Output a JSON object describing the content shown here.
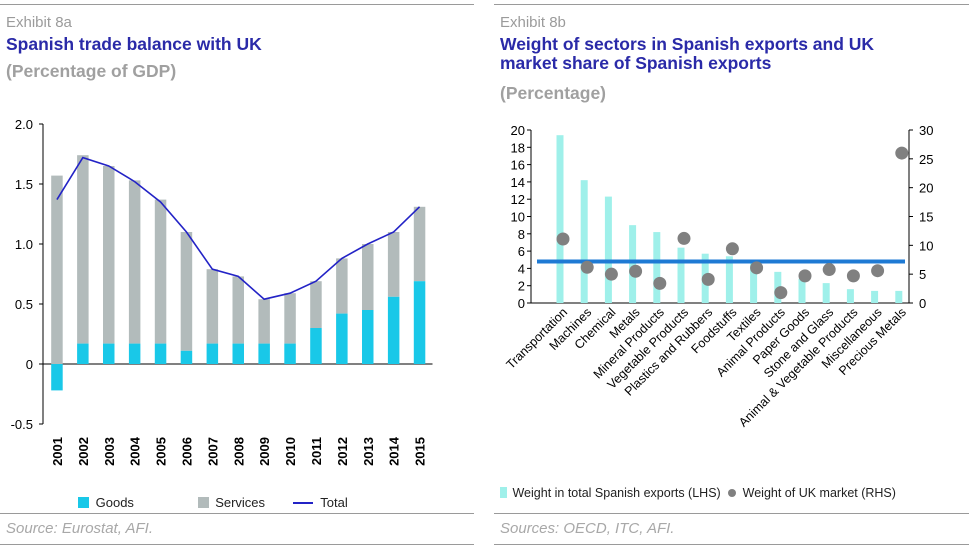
{
  "colors": {
    "goods": "#19c8e8",
    "services": "#b2bbbb",
    "total": "#2323c6",
    "weight": "#9ff0ea",
    "uk": "#808080",
    "avg": "#1e7ad4",
    "title": "#2a2aa8"
  },
  "panel_a": {
    "exhibit": "Exhibit 8a",
    "title": "Spanish trade balance with UK",
    "subtitle": "(Percentage of GDP)",
    "source": "Source: Eurostat, AFI.",
    "legend": {
      "goods": "Goods",
      "services": "Services",
      "total": "Total"
    }
  },
  "panel_b": {
    "exhibit": "Exhibit 8b",
    "title_line1": "Weight of sectors in Spanish exports and UK",
    "title_line2": "market share of Spanish exports",
    "subtitle": "(Percentage)",
    "source": "Sources: OECD, ITC, AFI.",
    "legend": {
      "weight": "Weight in total Spanish exports (LHS)",
      "uk": "Weight of UK market (RHS)"
    }
  },
  "chart_data": [
    {
      "type": "bar",
      "stacked": true,
      "categories": [
        "2001",
        "2002",
        "2003",
        "2004",
        "2005",
        "2006",
        "2007",
        "2008",
        "2009",
        "2010",
        "2011",
        "2012",
        "2013",
        "2014",
        "2015"
      ],
      "series": [
        {
          "name": "Goods",
          "type": "bar",
          "values": [
            -0.22,
            0.17,
            0.17,
            0.17,
            0.17,
            0.11,
            0.17,
            0.17,
            0.17,
            0.17,
            0.3,
            0.42,
            0.45,
            0.56,
            0.69
          ]
        },
        {
          "name": "Services",
          "type": "bar",
          "values": [
            1.57,
            1.57,
            1.48,
            1.36,
            1.2,
            0.99,
            0.62,
            0.56,
            0.37,
            0.42,
            0.39,
            0.46,
            0.55,
            0.54,
            0.62
          ]
        },
        {
          "name": "Total",
          "type": "line",
          "values": [
            1.37,
            1.72,
            1.65,
            1.52,
            1.35,
            1.1,
            0.79,
            0.73,
            0.54,
            0.59,
            0.69,
            0.88,
            1.0,
            1.1,
            1.31
          ]
        }
      ],
      "yticks": [
        "2.0",
        "1.5",
        "1.0",
        "0.5",
        "0",
        "-0.5"
      ],
      "ylim": [
        -0.5,
        2.0
      ],
      "grid": false,
      "legend_position": "bottom"
    },
    {
      "type": "bar",
      "categories": [
        "Transportation",
        "Machines",
        "Chemical",
        "Metals",
        "Mineral Products",
        "Vegetable Products",
        "Plastics and Rubbers",
        "Foodstuffs",
        "Textiles",
        "Animal Products",
        "Paper Goods",
        "Stone and Glass",
        "Animal & Vegetable Products",
        "Miscellaneous",
        "Precious Metals"
      ],
      "series": [
        {
          "name": "Weight in total Spanish exports (LHS)",
          "type": "bar",
          "axis": "left",
          "values": [
            19.4,
            14.2,
            12.3,
            9.0,
            8.2,
            6.4,
            5.7,
            5.4,
            4.6,
            3.6,
            2.8,
            2.3,
            1.6,
            1.4,
            1.4
          ]
        },
        {
          "name": "Weight of UK market (RHS)",
          "type": "scatter",
          "axis": "right",
          "values": [
            11.1,
            6.2,
            5.0,
            5.5,
            3.4,
            11.2,
            4.1,
            9.4,
            6.1,
            1.8,
            4.7,
            5.8,
            4.7,
            5.6,
            26.0
          ]
        }
      ],
      "reference_line_rhs": 7.2,
      "yticks_left": [
        "20",
        "18",
        "16",
        "14",
        "12",
        "10",
        "8",
        "6",
        "4",
        "2",
        "0"
      ],
      "yticks_right": [
        "30",
        "25",
        "20",
        "15",
        "10",
        "5",
        "0"
      ],
      "ylim_left": [
        0,
        20
      ],
      "ylim_right": [
        0,
        30
      ],
      "grid": false,
      "legend_position": "bottom"
    }
  ]
}
